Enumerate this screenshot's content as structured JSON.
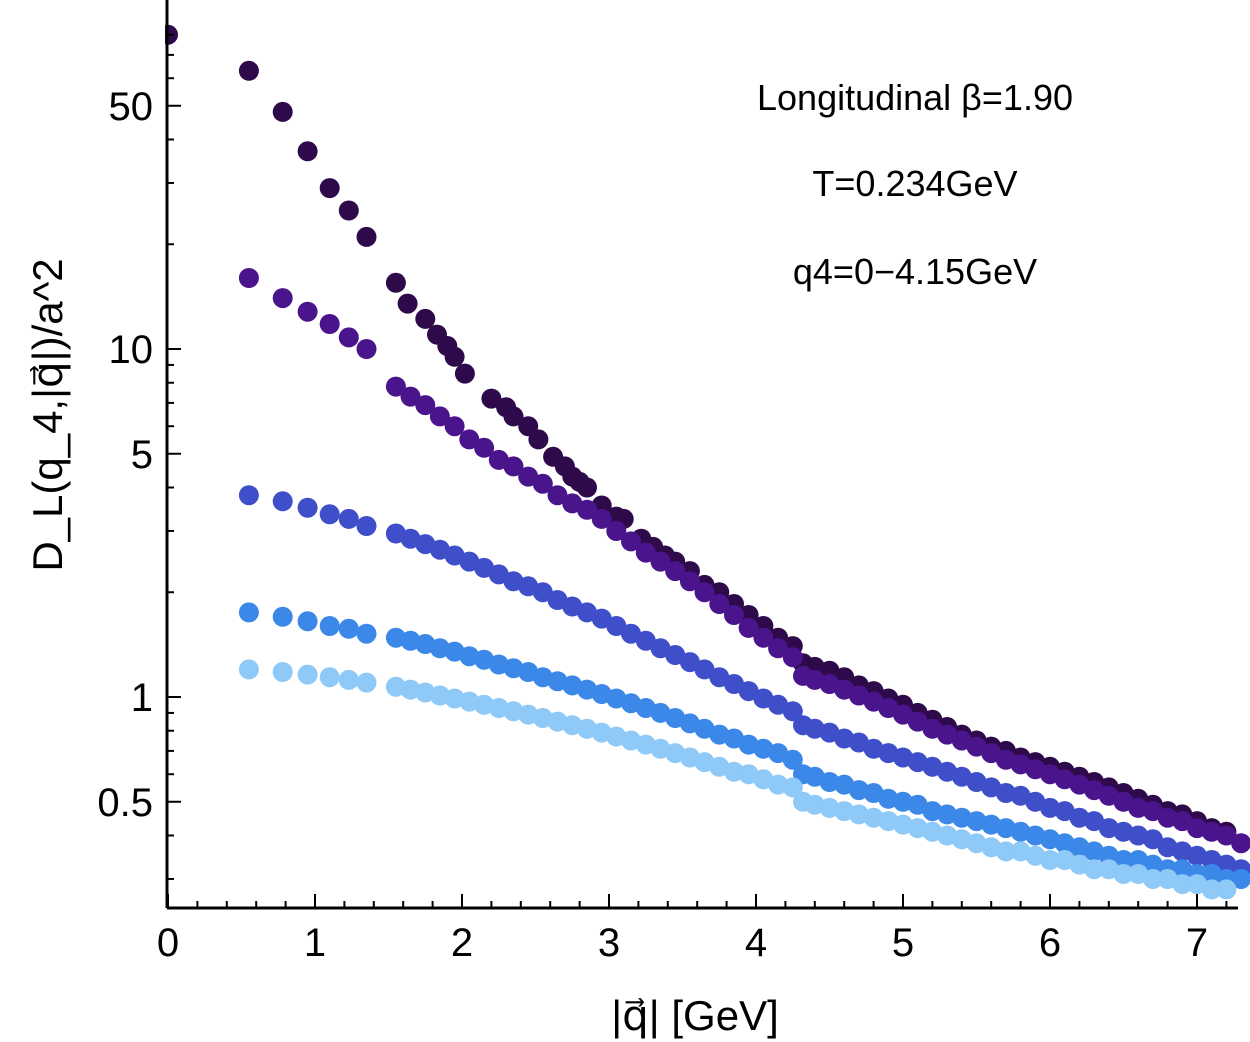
{
  "chart_data": {
    "type": "scatter",
    "title": "",
    "xlabel": "|q⃗| [GeV]",
    "ylabel": "D_L(q_4,|q⃗|)/a^2",
    "x_scale": "linear",
    "y_scale": "log",
    "xlim": [
      0,
      7.3
    ],
    "ylim": [
      0.3,
      80
    ],
    "x_ticks": [
      0,
      1,
      2,
      3,
      4,
      5,
      6,
      7
    ],
    "x_tick_labels": [
      "0",
      "1",
      "2",
      "3",
      "4",
      "5",
      "6",
      "7"
    ],
    "y_ticks": [
      0.5,
      1,
      5,
      10,
      50
    ],
    "y_tick_labels": [
      "0.5",
      "1",
      "5",
      "10",
      "50"
    ],
    "grid": false,
    "legend": "none",
    "annotations": [
      "Longitudinal β=1.90",
      "T=0.234GeV",
      "q4=0−4.15GeV"
    ],
    "series": [
      {
        "color": "#2e0a4b",
        "x": [
          0.0,
          0.55,
          0.78,
          0.95,
          1.1,
          1.23,
          1.35,
          1.55,
          1.63,
          1.75,
          1.83,
          1.9,
          1.95,
          2.02,
          2.2,
          2.3,
          2.35,
          2.45,
          2.52,
          2.62,
          2.7,
          2.75,
          2.8,
          2.85,
          2.95,
          3.05,
          3.1,
          3.22,
          3.3,
          3.38,
          3.45,
          3.55,
          3.65,
          3.75,
          3.85,
          3.95,
          4.05,
          4.15,
          4.25,
          4.32,
          4.4,
          4.5,
          4.6,
          4.7,
          4.8,
          4.9,
          5.0,
          5.1,
          5.2,
          5.3,
          5.4,
          5.5,
          5.6,
          5.7,
          5.8,
          5.9,
          6.0,
          6.1,
          6.2,
          6.3,
          6.4,
          6.5,
          6.6,
          6.7,
          6.8,
          6.9,
          7.0,
          7.1,
          7.2
        ],
        "y": [
          80,
          63,
          48,
          37,
          29,
          25,
          21,
          15.5,
          13.5,
          12.2,
          11.0,
          10.2,
          9.5,
          8.5,
          7.2,
          6.8,
          6.4,
          6.0,
          5.5,
          4.9,
          4.6,
          4.3,
          4.15,
          4.0,
          3.55,
          3.3,
          3.25,
          2.85,
          2.7,
          2.55,
          2.45,
          2.3,
          2.1,
          2.0,
          1.85,
          1.72,
          1.6,
          1.48,
          1.4,
          1.25,
          1.22,
          1.19,
          1.14,
          1.08,
          1.04,
          0.99,
          0.95,
          0.9,
          0.86,
          0.82,
          0.78,
          0.75,
          0.72,
          0.7,
          0.67,
          0.65,
          0.63,
          0.61,
          0.59,
          0.57,
          0.55,
          0.53,
          0.51,
          0.49,
          0.47,
          0.46,
          0.44,
          0.42,
          0.41
        ]
      },
      {
        "color": "#4a148c",
        "x": [
          0.55,
          0.78,
          0.95,
          1.1,
          1.23,
          1.35,
          1.55,
          1.65,
          1.75,
          1.85,
          1.95,
          2.05,
          2.15,
          2.25,
          2.35,
          2.45,
          2.55,
          2.65,
          2.75,
          2.85,
          2.95,
          3.05,
          3.15,
          3.25,
          3.35,
          3.45,
          3.55,
          3.65,
          3.75,
          3.85,
          3.95,
          4.05,
          4.15,
          4.25,
          4.32,
          4.4,
          4.5,
          4.6,
          4.7,
          4.8,
          4.9,
          5.0,
          5.1,
          5.2,
          5.3,
          5.4,
          5.5,
          5.6,
          5.7,
          5.8,
          5.9,
          6.0,
          6.1,
          6.2,
          6.3,
          6.4,
          6.5,
          6.6,
          6.7,
          6.8,
          6.9,
          7.0,
          7.1,
          7.2,
          7.3
        ],
        "y": [
          16,
          14,
          12.8,
          11.8,
          10.8,
          10.0,
          7.8,
          7.3,
          6.9,
          6.4,
          6.0,
          5.5,
          5.2,
          4.8,
          4.6,
          4.3,
          4.1,
          3.8,
          3.6,
          3.45,
          3.25,
          3.0,
          2.8,
          2.6,
          2.45,
          2.3,
          2.15,
          2.0,
          1.85,
          1.72,
          1.58,
          1.48,
          1.38,
          1.3,
          1.15,
          1.12,
          1.09,
          1.05,
          1.01,
          0.97,
          0.93,
          0.89,
          0.85,
          0.81,
          0.78,
          0.75,
          0.72,
          0.69,
          0.66,
          0.64,
          0.62,
          0.6,
          0.58,
          0.56,
          0.54,
          0.52,
          0.5,
          0.48,
          0.47,
          0.45,
          0.44,
          0.42,
          0.41,
          0.4,
          0.38
        ]
      },
      {
        "color": "#3f4ec9",
        "x": [
          0.55,
          0.78,
          0.95,
          1.1,
          1.23,
          1.35,
          1.55,
          1.65,
          1.75,
          1.85,
          1.95,
          2.05,
          2.15,
          2.25,
          2.35,
          2.45,
          2.55,
          2.65,
          2.75,
          2.85,
          2.95,
          3.05,
          3.15,
          3.25,
          3.35,
          3.45,
          3.55,
          3.65,
          3.75,
          3.85,
          3.95,
          4.05,
          4.15,
          4.25,
          4.32,
          4.4,
          4.5,
          4.6,
          4.7,
          4.8,
          4.9,
          5.0,
          5.1,
          5.2,
          5.3,
          5.4,
          5.5,
          5.6,
          5.7,
          5.8,
          5.9,
          6.0,
          6.1,
          6.2,
          6.3,
          6.4,
          6.5,
          6.6,
          6.7,
          6.8,
          6.9,
          7.0,
          7.1,
          7.2,
          7.3
        ],
        "y": [
          3.8,
          3.65,
          3.5,
          3.35,
          3.25,
          3.1,
          2.95,
          2.85,
          2.75,
          2.65,
          2.55,
          2.45,
          2.35,
          2.25,
          2.15,
          2.08,
          2.0,
          1.9,
          1.82,
          1.75,
          1.68,
          1.6,
          1.52,
          1.45,
          1.38,
          1.32,
          1.26,
          1.2,
          1.14,
          1.09,
          1.04,
          0.99,
          0.95,
          0.91,
          0.83,
          0.81,
          0.79,
          0.76,
          0.74,
          0.71,
          0.69,
          0.67,
          0.65,
          0.63,
          0.61,
          0.59,
          0.57,
          0.55,
          0.53,
          0.52,
          0.5,
          0.48,
          0.47,
          0.45,
          0.44,
          0.42,
          0.41,
          0.4,
          0.39,
          0.37,
          0.36,
          0.35,
          0.34,
          0.33,
          0.32
        ]
      },
      {
        "color": "#3b88e8",
        "x": [
          0.55,
          0.78,
          0.95,
          1.1,
          1.23,
          1.35,
          1.55,
          1.65,
          1.75,
          1.85,
          1.95,
          2.05,
          2.15,
          2.25,
          2.35,
          2.45,
          2.55,
          2.65,
          2.75,
          2.85,
          2.95,
          3.05,
          3.15,
          3.25,
          3.35,
          3.45,
          3.55,
          3.65,
          3.75,
          3.85,
          3.95,
          4.05,
          4.15,
          4.25,
          4.32,
          4.4,
          4.5,
          4.6,
          4.7,
          4.8,
          4.9,
          5.0,
          5.1,
          5.2,
          5.3,
          5.4,
          5.5,
          5.6,
          5.7,
          5.8,
          5.9,
          6.0,
          6.1,
          6.2,
          6.3,
          6.4,
          6.5,
          6.6,
          6.7,
          6.8,
          6.9,
          7.0,
          7.1,
          7.2,
          7.3
        ],
        "y": [
          1.75,
          1.7,
          1.65,
          1.6,
          1.57,
          1.52,
          1.48,
          1.45,
          1.42,
          1.38,
          1.35,
          1.31,
          1.28,
          1.24,
          1.21,
          1.18,
          1.14,
          1.11,
          1.08,
          1.05,
          1.02,
          0.99,
          0.96,
          0.93,
          0.9,
          0.87,
          0.84,
          0.81,
          0.78,
          0.76,
          0.73,
          0.71,
          0.69,
          0.66,
          0.6,
          0.59,
          0.57,
          0.56,
          0.54,
          0.53,
          0.51,
          0.5,
          0.49,
          0.47,
          0.46,
          0.45,
          0.44,
          0.43,
          0.42,
          0.41,
          0.4,
          0.39,
          0.38,
          0.37,
          0.36,
          0.35,
          0.34,
          0.34,
          0.33,
          0.32,
          0.32,
          0.31,
          0.31,
          0.3,
          0.3
        ]
      },
      {
        "color": "#8ec9f7",
        "x": [
          0.55,
          0.78,
          0.95,
          1.1,
          1.23,
          1.35,
          1.55,
          1.65,
          1.75,
          1.85,
          1.95,
          2.05,
          2.15,
          2.25,
          2.35,
          2.45,
          2.55,
          2.65,
          2.75,
          2.85,
          2.95,
          3.05,
          3.15,
          3.25,
          3.35,
          3.45,
          3.55,
          3.65,
          3.75,
          3.85,
          3.95,
          4.05,
          4.15,
          4.25,
          4.32,
          4.4,
          4.5,
          4.6,
          4.7,
          4.8,
          4.9,
          5.0,
          5.1,
          5.2,
          5.3,
          5.4,
          5.5,
          5.6,
          5.7,
          5.8,
          5.9,
          6.0,
          6.1,
          6.2,
          6.3,
          6.4,
          6.5,
          6.6,
          6.7,
          6.8,
          6.9,
          7.0,
          7.1,
          7.2
        ],
        "y": [
          1.2,
          1.18,
          1.16,
          1.14,
          1.12,
          1.1,
          1.07,
          1.05,
          1.03,
          1.01,
          0.99,
          0.97,
          0.95,
          0.93,
          0.91,
          0.89,
          0.87,
          0.85,
          0.83,
          0.81,
          0.79,
          0.77,
          0.75,
          0.73,
          0.71,
          0.69,
          0.67,
          0.65,
          0.63,
          0.61,
          0.6,
          0.58,
          0.56,
          0.55,
          0.5,
          0.49,
          0.48,
          0.47,
          0.46,
          0.45,
          0.44,
          0.43,
          0.42,
          0.41,
          0.4,
          0.39,
          0.38,
          0.37,
          0.36,
          0.36,
          0.35,
          0.34,
          0.34,
          0.33,
          0.32,
          0.32,
          0.31,
          0.31,
          0.3,
          0.3,
          0.29,
          0.29,
          0.28,
          0.28
        ]
      }
    ]
  }
}
